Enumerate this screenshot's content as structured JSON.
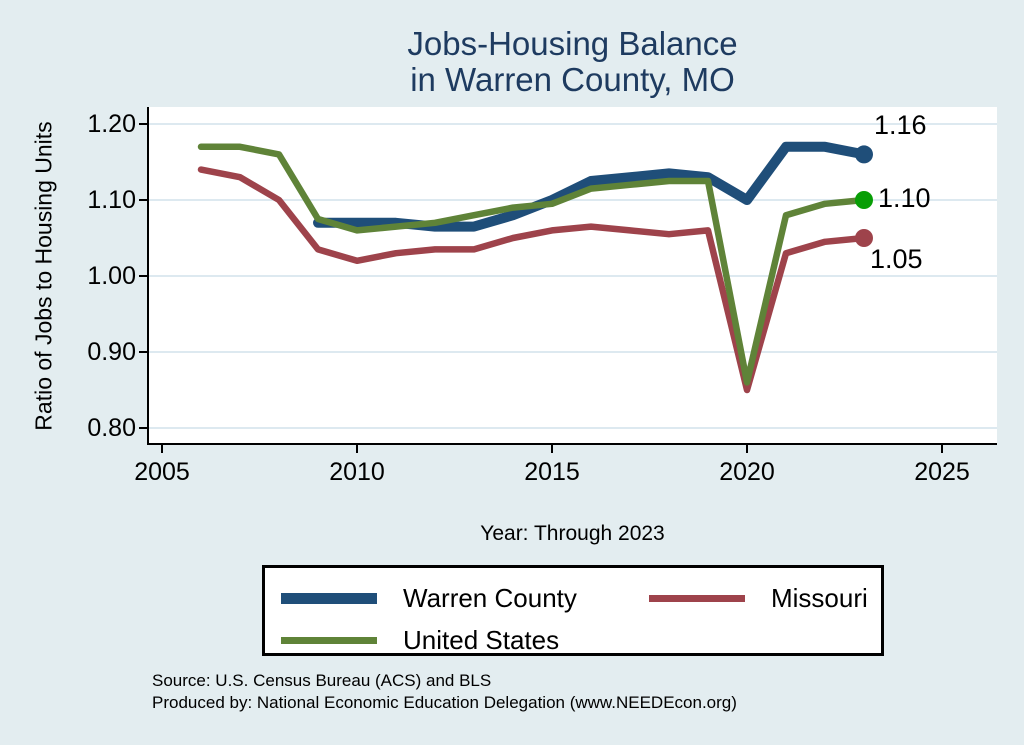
{
  "title": {
    "line1": "Jobs-Housing Balance",
    "line2": "in Warren County, MO"
  },
  "colors": {
    "background": "#e3edf0",
    "plot_background": "#ffffff",
    "gridline": "#dde9f0",
    "axis": "#000000",
    "title_text": "#1e3b60",
    "warren_county": "#1f4e79",
    "missouri": "#9e434b",
    "united_states": "#5f8338",
    "us_end_dot": "#089e06"
  },
  "chart_data": {
    "type": "line",
    "title": "Jobs-Housing Balance in Warren County, MO",
    "xlabel_note": "Year: Through 2023",
    "ylabel": "Ratio of Jobs to Housing Units",
    "grid": true,
    "x_axis": {
      "range": [
        2004.6,
        2026.6
      ],
      "ticks": [
        {
          "value": 2005,
          "label": "2005"
        },
        {
          "value": 2010,
          "label": "2010"
        },
        {
          "value": 2015,
          "label": "2015"
        },
        {
          "value": 2020,
          "label": "2020"
        },
        {
          "value": 2025,
          "label": "2025"
        }
      ]
    },
    "y_axis": {
      "range": [
        0.777,
        1.226
      ],
      "ticks": [
        {
          "value": 0.8,
          "label": "0.80"
        },
        {
          "value": 0.9,
          "label": "0.90"
        },
        {
          "value": 1.0,
          "label": "1.00"
        },
        {
          "value": 1.1,
          "label": "1.10"
        },
        {
          "value": 1.2,
          "label": "1.20"
        }
      ]
    },
    "series": [
      {
        "name": "Warren County",
        "color": "#1f4e79",
        "dot_color": "#1f4e79",
        "line_width": 10,
        "end_label": "1.16",
        "years": [
          2009,
          2010,
          2011,
          2012,
          2013,
          2014,
          2015,
          2016,
          2017,
          2018,
          2019,
          2020,
          2021,
          2022,
          2023
        ],
        "values": [
          1.07,
          1.07,
          1.07,
          1.065,
          1.065,
          1.08,
          1.1,
          1.125,
          1.13,
          1.135,
          1.13,
          1.1,
          1.17,
          1.17,
          1.16
        ]
      },
      {
        "name": "Missouri",
        "color": "#9e434b",
        "dot_color": "#9e434b",
        "line_width": 6.5,
        "end_label": "1.05",
        "years": [
          2006,
          2007,
          2008,
          2009,
          2010,
          2011,
          2012,
          2013,
          2014,
          2015,
          2016,
          2017,
          2018,
          2019,
          2020,
          2021,
          2022,
          2023
        ],
        "values": [
          1.14,
          1.13,
          1.1,
          1.035,
          1.02,
          1.03,
          1.035,
          1.035,
          1.05,
          1.06,
          1.065,
          1.06,
          1.055,
          1.06,
          0.85,
          1.03,
          1.045,
          1.05
        ]
      },
      {
        "name": "United States",
        "color": "#5f8338",
        "dot_color": "#089e06",
        "line_width": 6.5,
        "end_label": "1.10",
        "years": [
          2006,
          2007,
          2008,
          2009,
          2010,
          2011,
          2012,
          2013,
          2014,
          2015,
          2016,
          2017,
          2018,
          2019,
          2020,
          2021,
          2022,
          2023
        ],
        "values": [
          1.17,
          1.17,
          1.16,
          1.075,
          1.06,
          1.065,
          1.07,
          1.08,
          1.09,
          1.095,
          1.115,
          1.12,
          1.125,
          1.125,
          0.86,
          1.08,
          1.095,
          1.1
        ]
      }
    ],
    "legend_position": "bottom"
  },
  "y_axis_title": "Ratio of Jobs to Housing Units",
  "x_caption": "Year: Through 2023",
  "legend": {
    "items": [
      {
        "label": "Warren County",
        "series": 0
      },
      {
        "label": "Missouri",
        "series": 1
      },
      {
        "label": "United States",
        "series": 2
      }
    ]
  },
  "footer": {
    "source": "Source: U.S. Census Bureau (ACS) and BLS",
    "produced": "Produced by: National Economic Education Delegation (www.NEEDEcon.org)"
  }
}
